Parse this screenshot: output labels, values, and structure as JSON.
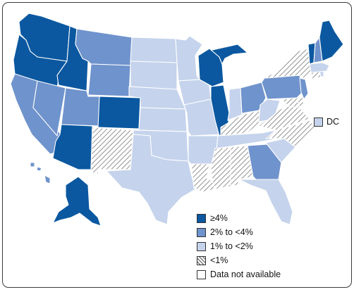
{
  "colors": {
    "ge4": "#0b58a0",
    "2to4": "#6f93cc",
    "1to2": "#c5d3ec",
    "lt1_bg": "#ffffff",
    "lt1_hatch": "#777777",
    "na": "#ffffff",
    "border": "#ffffff"
  },
  "legend": {
    "items": [
      {
        "key": "ge4",
        "label": "≥4%"
      },
      {
        "key": "2to4",
        "label": "2% to <4%"
      },
      {
        "key": "1to2",
        "label": "1% to <2%"
      },
      {
        "key": "lt1",
        "label": "<1%"
      },
      {
        "key": "na",
        "label": "Data not available"
      }
    ]
  },
  "dc": {
    "label": "DC",
    "category": "1to2"
  },
  "states": {
    "WA": "ge4",
    "OR": "ge4",
    "ID": "ge4",
    "CO": "ge4",
    "AZ": "ge4",
    "AK": "ge4",
    "WI": "ge4",
    "MI": "ge4",
    "IL": "ge4",
    "VT": "ge4",
    "ME": "ge4",
    "CA": "2to4",
    "NV": "2to4",
    "UT": "2to4",
    "MT": "2to4",
    "WY": "2to4",
    "HI": "2to4",
    "OH": "2to4",
    "PA": "2to4",
    "GA": "2to4",
    "NH": "2to4",
    "NJ": "2to4",
    "NM": "lt1",
    "LA": "lt1",
    "MS": "lt1",
    "AL": "lt1",
    "NC": "lt1",
    "VA": "lt1",
    "KY": "lt1",
    "NY": "lt1",
    "MD": "lt1",
    "DE": "lt1",
    "CT": "lt1",
    "ND": "1to2",
    "SD": "1to2",
    "NE": "1to2",
    "KS": "1to2",
    "OK": "1to2",
    "TX": "1to2",
    "MN": "1to2",
    "IA": "1to2",
    "MO": "1to2",
    "AR": "1to2",
    "TN": "1to2",
    "IN": "1to2",
    "WV": "1to2",
    "SC": "1to2",
    "FL": "1to2",
    "MA": "1to2",
    "RI": "1to2"
  }
}
